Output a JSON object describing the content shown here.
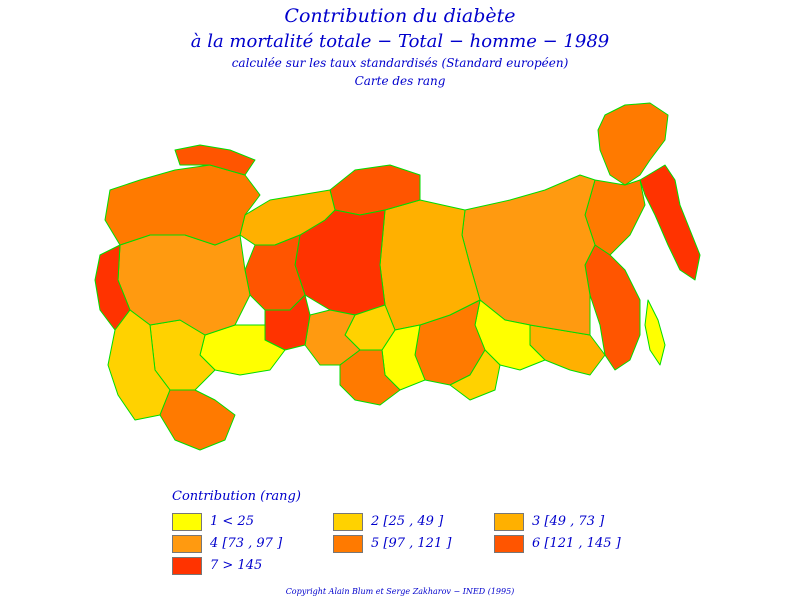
{
  "titles": {
    "line1": "Contribution du diabète",
    "line2": "à la mortalité totale  −  Total  −  homme  −  1989",
    "line3": "calculée sur les taux standardisés (Standard européen)",
    "line4": "Carte des rang"
  },
  "legend": {
    "title": "Contribution (rang)",
    "items": [
      {
        "label": "1  <  25",
        "color": "#ffff00"
      },
      {
        "label": "2 [25 ,  49 ]",
        "color": "#ffd200"
      },
      {
        "label": "3 [49 ,  73 ]",
        "color": "#ffb000"
      },
      {
        "label": "4 [73 ,  97 ]",
        "color": "#ff9a10"
      },
      {
        "label": "5 [97 ,  121 ]",
        "color": "#ff7a00"
      },
      {
        "label": "6 [121 ,  145 ]",
        "color": "#ff5500"
      },
      {
        "label": "7  >  145",
        "color": "#ff3300"
      }
    ]
  },
  "map": {
    "border_color": "#00dd00",
    "regions": [
      {
        "class": 7
      },
      {
        "class": 5
      },
      {
        "class": 5
      },
      {
        "class": 6
      },
      {
        "class": 1
      },
      {
        "class": 3
      },
      {
        "class": 4
      },
      {
        "class": 1
      },
      {
        "class": 5
      },
      {
        "class": 2
      },
      {
        "class": 3
      },
      {
        "class": 1
      },
      {
        "class": 6
      },
      {
        "class": 7
      },
      {
        "class": 2
      },
      {
        "class": 4
      },
      {
        "class": 5
      },
      {
        "class": 3
      },
      {
        "class": 6
      },
      {
        "class": 7
      },
      {
        "class": 1
      },
      {
        "class": 2
      },
      {
        "class": 4
      },
      {
        "class": 5
      },
      {
        "class": 6
      },
      {
        "class": 7
      },
      {
        "class": 2
      },
      {
        "class": 5
      }
    ]
  },
  "copyright": "Copyright Alain Blum et Serge Zakharov  −  INED (1995)"
}
